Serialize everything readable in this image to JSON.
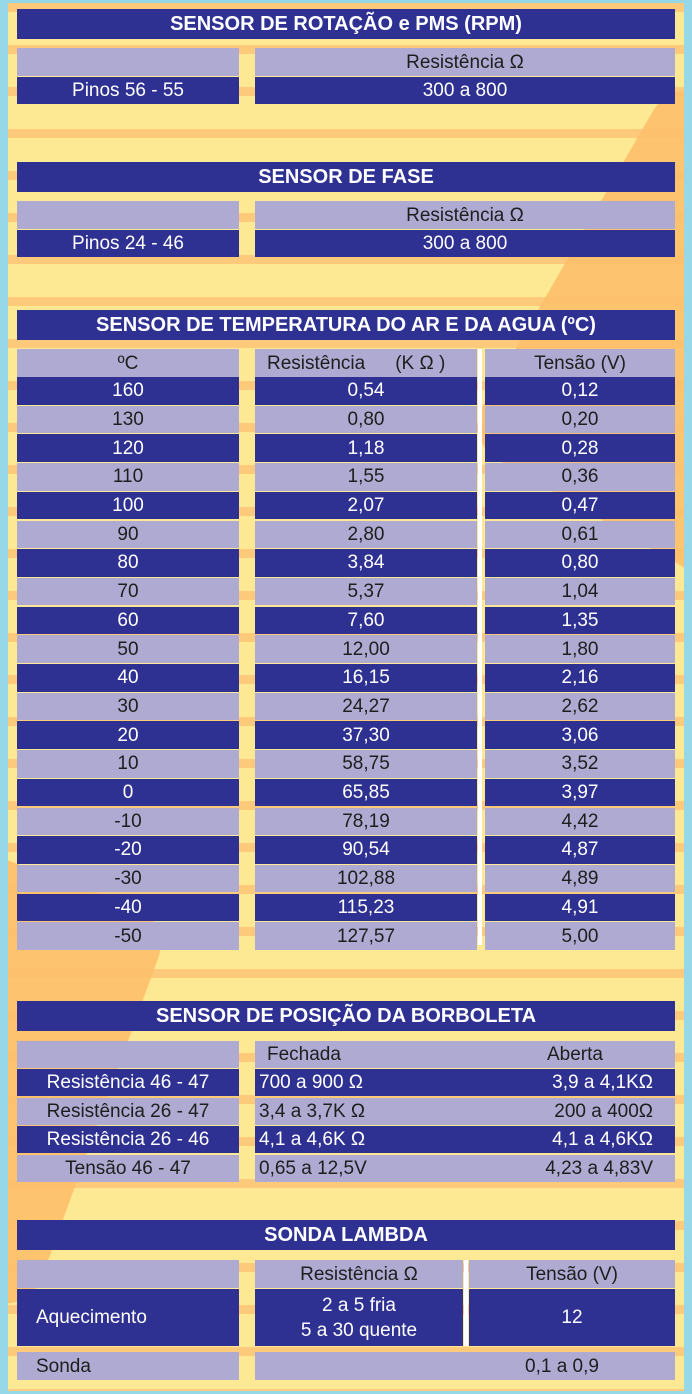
{
  "rpm": {
    "title": "SENSOR DE ROTAÇÃO e PMS (RPM)",
    "header": "Resistência Ω",
    "pins": "Pinos 56 - 55",
    "value": "300 a 800"
  },
  "fase": {
    "title": "SENSOR DE FASE",
    "header": "Resistência Ω",
    "pins": "Pinos 24 - 46",
    "value": "300 a 800"
  },
  "temp": {
    "title": "SENSOR DE TEMPERATURA DO AR E DA  AGUA (ºC)",
    "headers": [
      "ºC",
      "Resistência",
      "(K Ω )",
      "Tensão (V)"
    ],
    "rows": [
      [
        "160",
        "0,54",
        "0,12"
      ],
      [
        "130",
        "0,80",
        "0,20"
      ],
      [
        "120",
        "1,18",
        "0,28"
      ],
      [
        "110",
        "1,55",
        "0,36"
      ],
      [
        "100",
        "2,07",
        "0,47"
      ],
      [
        "90",
        "2,80",
        "0,61"
      ],
      [
        "80",
        "3,84",
        "0,80"
      ],
      [
        "70",
        "5,37",
        "1,04"
      ],
      [
        "60",
        "7,60",
        "1,35"
      ],
      [
        "50",
        "12,00",
        "1,80"
      ],
      [
        "40",
        "16,15",
        "2,16"
      ],
      [
        "30",
        "24,27",
        "2,62"
      ],
      [
        "20",
        "37,30",
        "3,06"
      ],
      [
        "10",
        "58,75",
        "3,52"
      ],
      [
        "0",
        "65,85",
        "3,97"
      ],
      [
        "-10",
        "78,19",
        "4,42"
      ],
      [
        "-20",
        "90,54",
        "4,87"
      ],
      [
        "-30",
        "102,88",
        "4,89"
      ],
      [
        "-40",
        "115,23",
        "4,91"
      ],
      [
        "-50",
        "127,57",
        "5,00"
      ]
    ]
  },
  "tps": {
    "title": "SENSOR DE POSIÇÃO DA BORBOLETA",
    "headers": [
      "Fechada",
      "Aberta"
    ],
    "rows": [
      [
        "Resistência 46 - 47",
        "700 a 900 Ω",
        "3,9 a 4,1KΩ"
      ],
      [
        "Resistência 26 - 47",
        "3,4 a 3,7K Ω",
        "200 a 400Ω"
      ],
      [
        "Resistência 26 - 46",
        "4,1 a 4,6K Ω",
        "4,1 a 4,6KΩ"
      ],
      [
        "Tensão 46 - 47",
        "0,65 a 12,5V",
        "4,23 a 4,83V"
      ]
    ]
  },
  "lambda": {
    "title": "SONDA LAMBDA",
    "headers": [
      "Resistência Ω",
      "Tensão (V)"
    ],
    "heating_label": "Aquecimento",
    "heating_res_1": "2 a 5 fria",
    "heating_res_2": "5 a 30 quente",
    "heating_v": "12",
    "probe_label": "Sonda",
    "probe_v": "0,1 a 0,9"
  }
}
